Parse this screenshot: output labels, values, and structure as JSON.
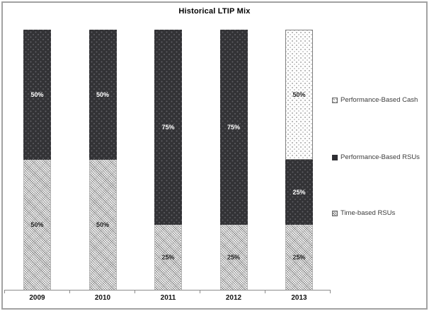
{
  "window": {
    "background": "#ffffff",
    "frame_border_color": "#a2a2a2"
  },
  "chart_data": {
    "type": "bar",
    "stacked": true,
    "title": "Historical LTIP Mix",
    "categories": [
      "2009",
      "2010",
      "2011",
      "2012",
      "2013"
    ],
    "series": [
      {
        "name": "Time-based RSUs",
        "pattern": "diagonal-hatch",
        "values": [
          50,
          50,
          25,
          25,
          25
        ],
        "data_labels": [
          "50%",
          "50%",
          "25%",
          "25%",
          "25%"
        ],
        "label_color": "#262626"
      },
      {
        "name": "Performance-Based RSUs",
        "pattern": "dark-dots",
        "values": [
          50,
          50,
          75,
          75,
          25
        ],
        "data_labels": [
          "50%",
          "50%",
          "75%",
          "75%",
          "25%"
        ],
        "label_color": "#ffffff"
      },
      {
        "name": "Performance-Based Cash",
        "pattern": "light-dots",
        "values": [
          0,
          0,
          0,
          0,
          50
        ],
        "data_labels": [
          "",
          "",
          "",
          "",
          "50%"
        ],
        "label_color": "#262626"
      }
    ],
    "ylim": [
      0,
      100
    ],
    "grid": false,
    "y_axis_visible": false,
    "legend_position": "right",
    "legend": [
      {
        "label": "Performance-Based Cash",
        "pattern": "light-dots"
      },
      {
        "label": "Performance-Based RSUs",
        "pattern": "dark-dots"
      },
      {
        "label": "Time-based RSUs",
        "pattern": "diagonal-hatch"
      }
    ],
    "colors": {
      "dark_fill": "#333336",
      "axis": "#8c8c8c",
      "axis_label": "#111111",
      "legend_text": "#3c3c3c"
    }
  }
}
